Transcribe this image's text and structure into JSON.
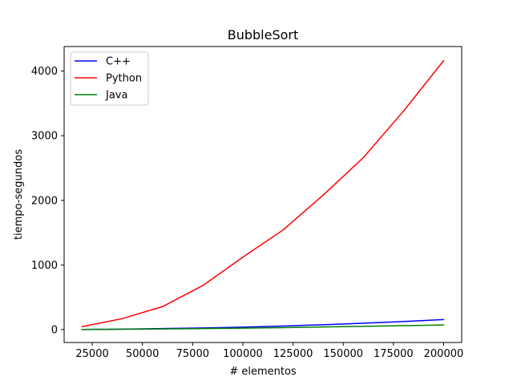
{
  "chart_data": {
    "type": "line",
    "title": "BubbleSort",
    "xlabel": "# elementos",
    "ylabel": "tiempo-segundos",
    "xlim": [
      11000,
      209000
    ],
    "ylim": [
      -200,
      4380
    ],
    "x_ticks": [
      25000,
      50000,
      75000,
      100000,
      125000,
      150000,
      175000,
      200000
    ],
    "y_ticks": [
      0,
      1000,
      2000,
      3000,
      4000
    ],
    "grid": false,
    "legend_position": "top-left",
    "x": [
      20000,
      40000,
      60000,
      80000,
      100000,
      120000,
      140000,
      160000,
      180000,
      200000
    ],
    "series": [
      {
        "name": "C++",
        "color": "#0000ff",
        "values": [
          2,
          6,
          15,
          25,
          38,
          55,
          75,
          98,
          125,
          155
        ]
      },
      {
        "name": "Python",
        "color": "#ff0000",
        "values": [
          45,
          170,
          355,
          680,
          1120,
          1540,
          2080,
          2660,
          3380,
          4160
        ]
      },
      {
        "name": "Java",
        "color": "#008000",
        "values": [
          1,
          4,
          9,
          15,
          22,
          30,
          40,
          50,
          60,
          72
        ]
      }
    ]
  }
}
